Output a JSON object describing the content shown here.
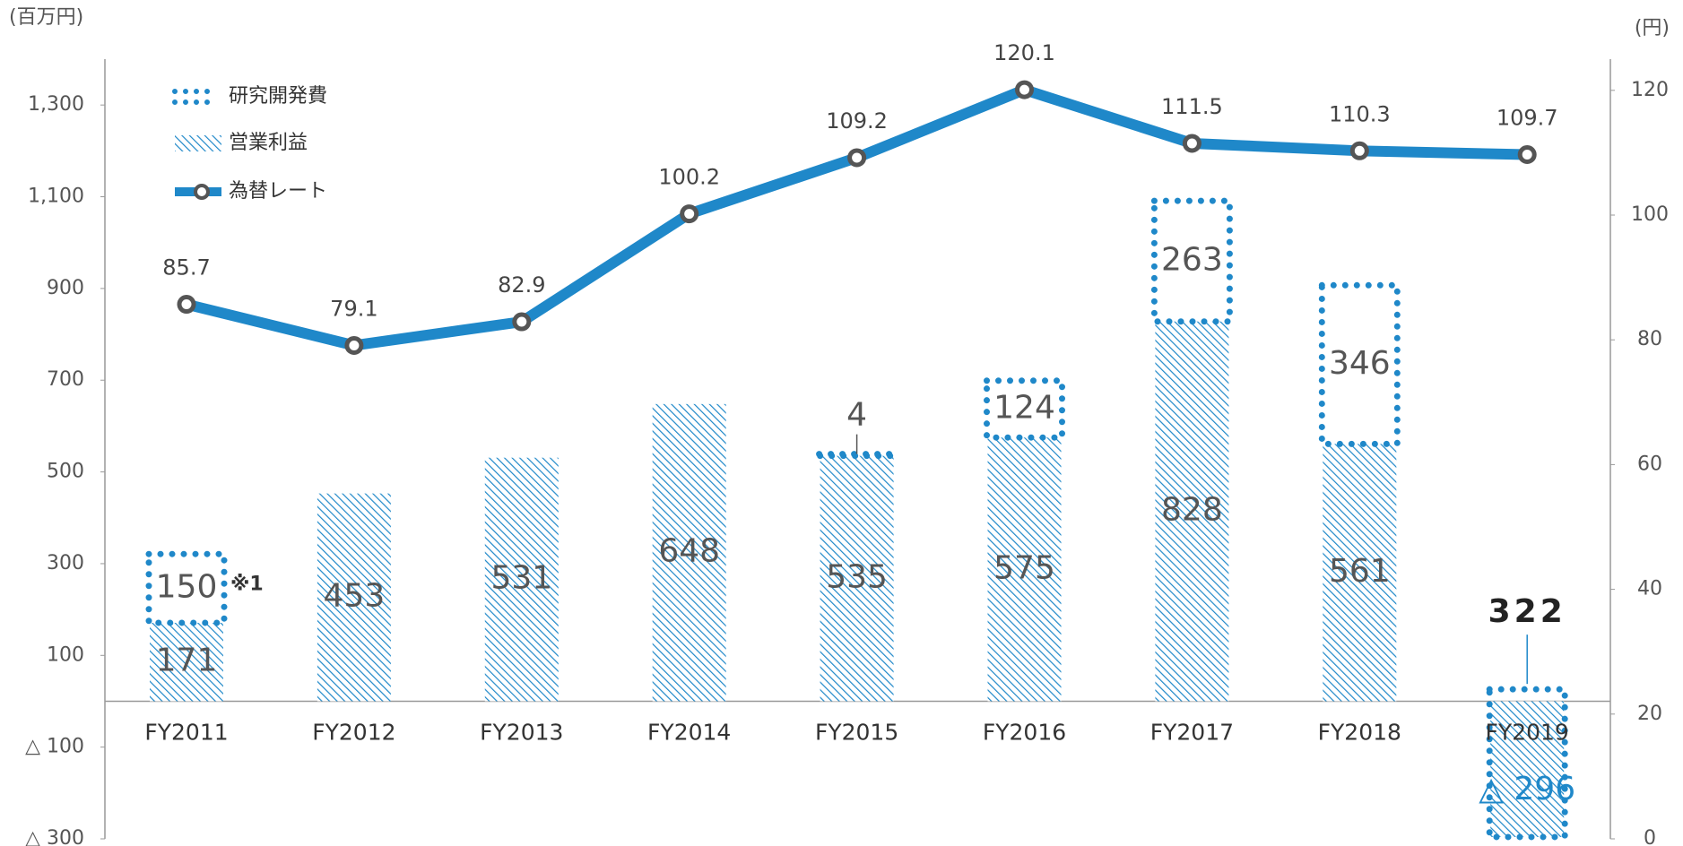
{
  "chart_data": {
    "type": "bar-line",
    "y_label": "(百万円)",
    "y2_label": "(円)",
    "annotation": "※1",
    "categories": [
      "FY2011",
      "FY2012",
      "FY2013",
      "FY2014",
      "FY2015",
      "FY2016",
      "FY2017",
      "FY2018",
      "FY2019"
    ],
    "series": [
      {
        "name": "研究開発費",
        "type": "bar",
        "stack": true,
        "color": "#1f88c9",
        "values": [
          150,
          null,
          null,
          null,
          4,
          124,
          263,
          346,
          322
        ]
      },
      {
        "name": "営業利益",
        "type": "bar",
        "color": "#1f88c9",
        "values": [
          171,
          453,
          531,
          648,
          535,
          575,
          828,
          561,
          -296
        ],
        "value_labels": [
          "171",
          "453",
          "531",
          "648",
          "535",
          "575",
          "828",
          "561",
          "△ 296"
        ]
      },
      {
        "name": "為替レート",
        "type": "line",
        "axis": "y2",
        "color": "#1f88c9",
        "values": [
          85.7,
          79.1,
          82.9,
          100.2,
          109.2,
          120.1,
          111.5,
          110.3,
          109.7
        ]
      }
    ],
    "ylim": [
      -300,
      1400
    ],
    "yticks": [
      {
        "value": 1300,
        "label": "1,300"
      },
      {
        "value": 1100,
        "label": "1,100"
      },
      900,
      700,
      500,
      300,
      100,
      {
        "value": -100,
        "label": "△ 100"
      },
      {
        "value": -300,
        "label": "△ 300"
      }
    ],
    "y2lim": [
      0,
      125
    ],
    "y2ticks": [
      0,
      20,
      40,
      60,
      80,
      100,
      120
    ],
    "legend": "top-left"
  }
}
